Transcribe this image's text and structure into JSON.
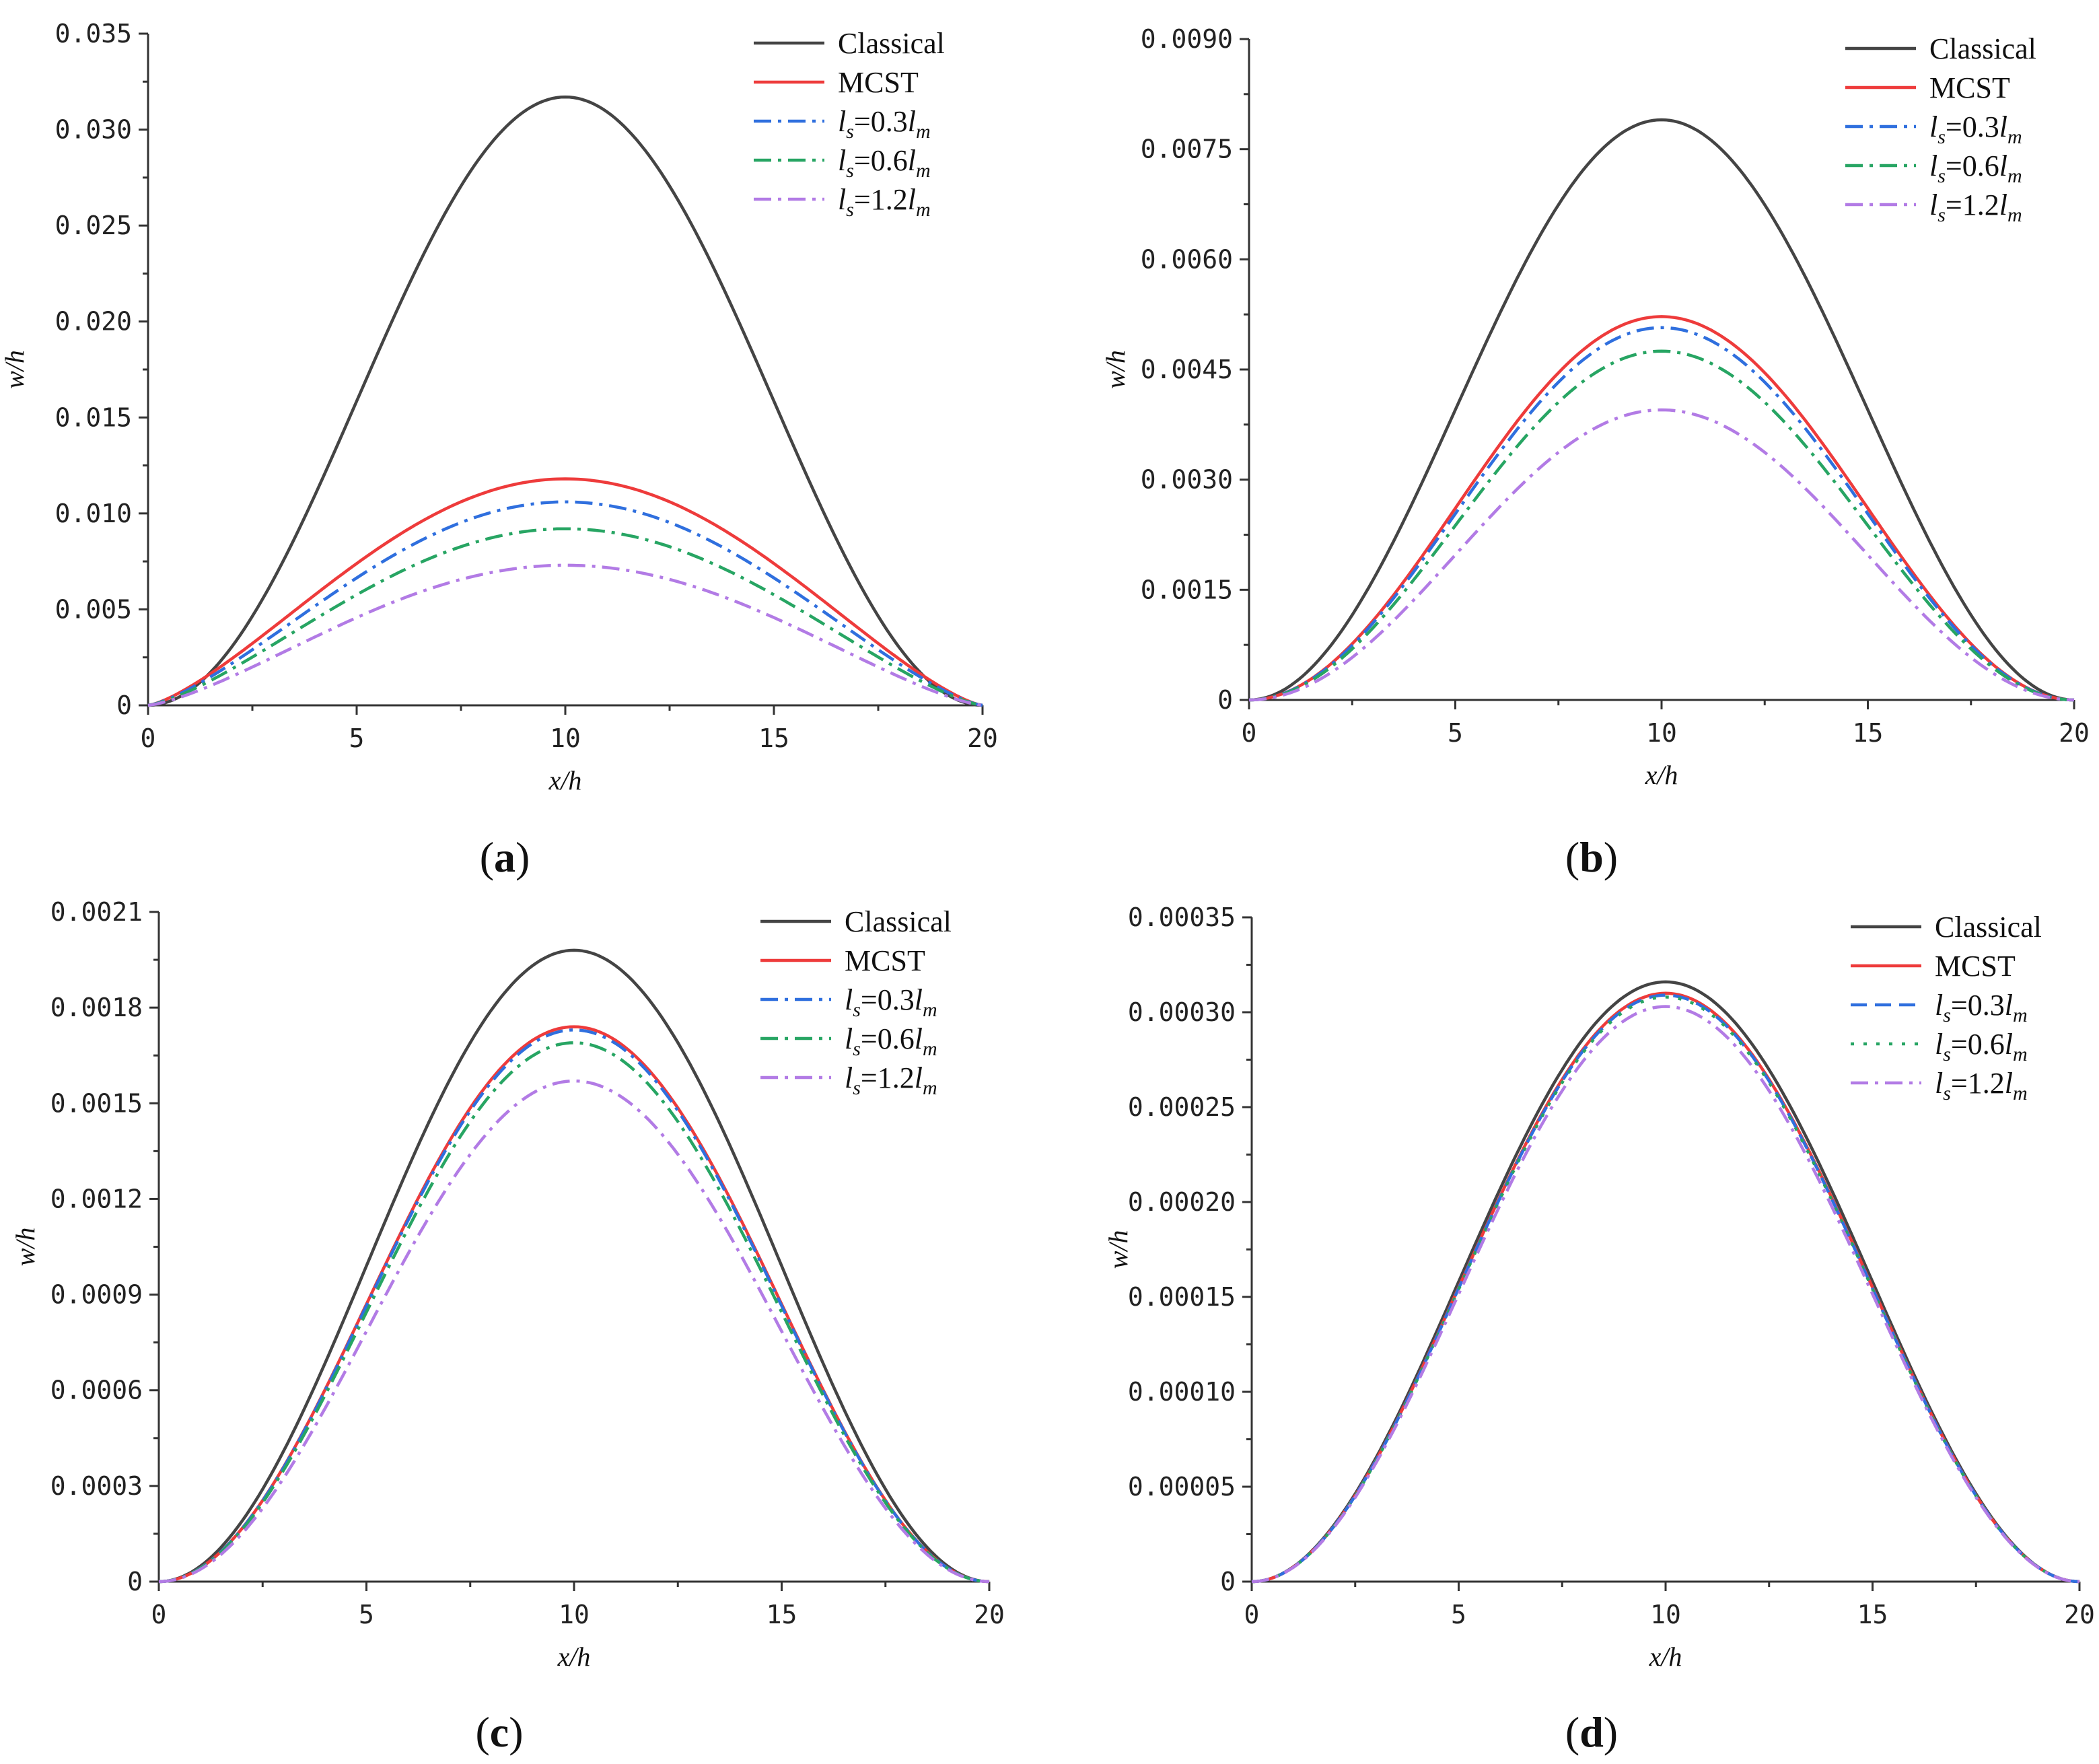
{
  "figure": {
    "panels": [
      "a",
      "b",
      "c",
      "d"
    ]
  },
  "chart_data": [
    {
      "type": "line",
      "panel_label": "a",
      "xlabel": "x/h",
      "ylabel": "w/h",
      "xlim": [
        0,
        20
      ],
      "ylim": [
        0,
        0.035
      ],
      "xticks": [
        "0",
        "5",
        "10",
        "15",
        "20"
      ],
      "yticks": [
        "0",
        "0.005",
        "0.010",
        "0.015",
        "0.020",
        "0.025",
        "0.030",
        "0.035"
      ],
      "x": [
        0,
        2.5,
        5,
        7.5,
        10,
        12.5,
        15,
        17.5,
        20
      ],
      "series": [
        {
          "name": "Classical",
          "peak": 0.0317,
          "shape": "bell",
          "color": "#444444",
          "dash": "solid"
        },
        {
          "name": "MCST",
          "peak": 0.0118,
          "shape": "sine",
          "color": "#ee3b3b",
          "dash": "solid"
        },
        {
          "name": "ls=0.3lm",
          "peak": 0.0106,
          "shape": "sine",
          "color": "#2f6fde",
          "dash": "dashdot"
        },
        {
          "name": "ls=0.6lm",
          "peak": 0.0092,
          "shape": "sine",
          "color": "#27a563",
          "dash": "dashdot"
        },
        {
          "name": "ls=1.2lm",
          "peak": 0.0073,
          "shape": "sine",
          "color": "#b27be5",
          "dash": "dashdot"
        }
      ]
    },
    {
      "type": "line",
      "panel_label": "b",
      "xlabel": "x/h",
      "ylabel": "w/h",
      "xlim": [
        0,
        20
      ],
      "ylim": [
        0,
        0.009
      ],
      "xticks": [
        "0",
        "5",
        "10",
        "15",
        "20"
      ],
      "yticks": [
        "0",
        "0.0015",
        "0.0030",
        "0.0045",
        "0.0060",
        "0.0075",
        "0.0090"
      ],
      "x": [
        0,
        2.5,
        5,
        7.5,
        10,
        12.5,
        15,
        17.5,
        20
      ],
      "series": [
        {
          "name": "Classical",
          "peak": 0.0079,
          "shape": "bell",
          "color": "#444444",
          "dash": "solid"
        },
        {
          "name": "MCST",
          "peak": 0.00522,
          "shape": "bell",
          "color": "#ee3b3b",
          "dash": "solid"
        },
        {
          "name": "ls=0.3lm",
          "peak": 0.00507,
          "shape": "bell",
          "color": "#2f6fde",
          "dash": "dashdot"
        },
        {
          "name": "ls=0.6lm",
          "peak": 0.00475,
          "shape": "bell",
          "color": "#27a563",
          "dash": "dashdot"
        },
        {
          "name": "ls=1.2lm",
          "peak": 0.00395,
          "shape": "bell",
          "color": "#b27be5",
          "dash": "dashdot"
        }
      ]
    },
    {
      "type": "line",
      "panel_label": "c",
      "xlabel": "x/h",
      "ylabel": "w/h",
      "xlim": [
        0,
        20
      ],
      "ylim": [
        0,
        0.0021
      ],
      "xticks": [
        "0",
        "5",
        "10",
        "15",
        "20"
      ],
      "yticks": [
        "0",
        "0.0003",
        "0.0006",
        "0.0009",
        "0.0012",
        "0.0015",
        "0.0018",
        "0.0021"
      ],
      "x": [
        0,
        2.5,
        5,
        7.5,
        10,
        12.5,
        15,
        17.5,
        20
      ],
      "series": [
        {
          "name": "Classical",
          "peak": 0.00198,
          "shape": "bell",
          "color": "#444444",
          "dash": "solid"
        },
        {
          "name": "MCST",
          "peak": 0.00174,
          "shape": "bell",
          "color": "#ee3b3b",
          "dash": "solid"
        },
        {
          "name": "ls=0.3lm",
          "peak": 0.00173,
          "shape": "bell",
          "color": "#2f6fde",
          "dash": "dashdot"
        },
        {
          "name": "ls=0.6lm",
          "peak": 0.00169,
          "shape": "bell",
          "color": "#27a563",
          "dash": "dashdot"
        },
        {
          "name": "ls=1.2lm",
          "peak": 0.00157,
          "shape": "bell",
          "color": "#b27be5",
          "dash": "dashdot"
        }
      ]
    },
    {
      "type": "line",
      "panel_label": "d",
      "xlabel": "x/h",
      "ylabel": "w/h",
      "xlim": [
        0,
        20
      ],
      "ylim": [
        0,
        0.00035
      ],
      "xticks": [
        "0",
        "5",
        "10",
        "15",
        "20"
      ],
      "yticks": [
        "0",
        "0.00005",
        "0.00010",
        "0.00015",
        "0.00020",
        "0.00025",
        "0.00030",
        "0.00035"
      ],
      "x": [
        0,
        2.5,
        5,
        7.5,
        10,
        12.5,
        15,
        17.5,
        20
      ],
      "series": [
        {
          "name": "Classical",
          "peak": 0.000316,
          "shape": "bell",
          "color": "#444444",
          "dash": "solid"
        },
        {
          "name": "MCST",
          "peak": 0.00031,
          "shape": "bell",
          "color": "#ee3b3b",
          "dash": "solid"
        },
        {
          "name": "ls=0.3lm",
          "peak": 0.000309,
          "shape": "bell",
          "color": "#2f6fde",
          "dash": "dashed"
        },
        {
          "name": "ls=0.6lm",
          "peak": 0.000308,
          "shape": "bell",
          "color": "#27a563",
          "dash": "dotted"
        },
        {
          "name": "ls=1.2lm",
          "peak": 0.000303,
          "shape": "bell",
          "color": "#b27be5",
          "dash": "dashdot"
        }
      ]
    }
  ]
}
